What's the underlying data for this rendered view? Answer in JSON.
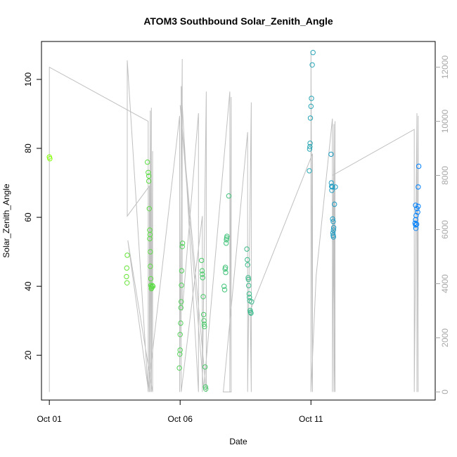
{
  "chart_data": {
    "type": "scatter",
    "title": "ATOM3 Southbound Solar_Zenith_Angle",
    "xlabel": "Date",
    "ylabel": "Solar_Zenith_Angle",
    "x_ticks": [
      "Oct 01",
      "Oct 06",
      "Oct 11"
    ],
    "y_ticks": [
      20,
      40,
      60,
      80,
      100
    ],
    "y2_ticks": [
      0,
      2000,
      4000,
      6000,
      8000,
      10000,
      12000
    ],
    "xlim_days": [
      -0.3,
      14.75
    ],
    "ylim": [
      7,
      111
    ],
    "y2lim": [
      -300,
      12950
    ],
    "grid": false,
    "points": [
      {
        "day": 0.0,
        "value": 77.5
      },
      {
        "day": 0.02,
        "value": 77.0
      },
      {
        "day": 2.98,
        "value": 49.0
      },
      {
        "day": 2.96,
        "value": 45.3
      },
      {
        "day": 2.95,
        "value": 42.8
      },
      {
        "day": 2.97,
        "value": 41.0
      },
      {
        "day": 3.75,
        "value": 76.0
      },
      {
        "day": 3.78,
        "value": 73.0
      },
      {
        "day": 3.8,
        "value": 72.0
      },
      {
        "day": 3.8,
        "value": 70.5
      },
      {
        "day": 3.82,
        "value": 62.5
      },
      {
        "day": 3.84,
        "value": 56.3
      },
      {
        "day": 3.85,
        "value": 55.0
      },
      {
        "day": 3.84,
        "value": 53.8
      },
      {
        "day": 3.86,
        "value": 50.0
      },
      {
        "day": 3.86,
        "value": 45.8
      },
      {
        "day": 3.88,
        "value": 42.2
      },
      {
        "day": 3.88,
        "value": 40.3
      },
      {
        "day": 3.9,
        "value": 39.9
      },
      {
        "day": 3.92,
        "value": 39.6
      },
      {
        "day": 3.94,
        "value": 40.2
      },
      {
        "day": 3.9,
        "value": 39.3
      },
      {
        "day": 3.96,
        "value": 40.0
      },
      {
        "day": 4.97,
        "value": 16.3
      },
      {
        "day": 4.99,
        "value": 20.3
      },
      {
        "day": 5.0,
        "value": 21.5
      },
      {
        "day": 5.0,
        "value": 26.0
      },
      {
        "day": 5.02,
        "value": 29.3
      },
      {
        "day": 5.03,
        "value": 33.8
      },
      {
        "day": 5.04,
        "value": 35.5
      },
      {
        "day": 5.05,
        "value": 40.3
      },
      {
        "day": 5.06,
        "value": 44.5
      },
      {
        "day": 5.08,
        "value": 51.5
      },
      {
        "day": 5.09,
        "value": 52.5
      },
      {
        "day": 5.82,
        "value": 47.5
      },
      {
        "day": 5.84,
        "value": 44.5
      },
      {
        "day": 5.85,
        "value": 43.5
      },
      {
        "day": 5.86,
        "value": 42.5
      },
      {
        "day": 5.88,
        "value": 37.0
      },
      {
        "day": 5.9,
        "value": 31.8
      },
      {
        "day": 5.91,
        "value": 30.0
      },
      {
        "day": 5.92,
        "value": 29.0
      },
      {
        "day": 5.93,
        "value": 28.3
      },
      {
        "day": 5.95,
        "value": 16.6
      },
      {
        "day": 5.97,
        "value": 10.8
      },
      {
        "day": 5.98,
        "value": 10.2
      },
      {
        "day": 6.68,
        "value": 40.0
      },
      {
        "day": 6.7,
        "value": 39.0
      },
      {
        "day": 6.72,
        "value": 45.0
      },
      {
        "day": 6.73,
        "value": 45.5
      },
      {
        "day": 6.74,
        "value": 44.0
      },
      {
        "day": 6.76,
        "value": 52.5
      },
      {
        "day": 6.77,
        "value": 53.5
      },
      {
        "day": 6.78,
        "value": 54.0
      },
      {
        "day": 6.79,
        "value": 54.5
      },
      {
        "day": 6.86,
        "value": 66.2
      },
      {
        "day": 7.55,
        "value": 50.8
      },
      {
        "day": 7.57,
        "value": 47.7
      },
      {
        "day": 7.58,
        "value": 46.2
      },
      {
        "day": 7.6,
        "value": 42.5
      },
      {
        "day": 7.61,
        "value": 42.0
      },
      {
        "day": 7.62,
        "value": 40.2
      },
      {
        "day": 7.64,
        "value": 37.8
      },
      {
        "day": 7.65,
        "value": 36.8
      },
      {
        "day": 7.66,
        "value": 35.8
      },
      {
        "day": 7.68,
        "value": 33.0
      },
      {
        "day": 7.69,
        "value": 32.5
      },
      {
        "day": 7.71,
        "value": 32.2
      },
      {
        "day": 7.73,
        "value": 35.5
      },
      {
        "day": 9.94,
        "value": 73.5
      },
      {
        "day": 9.95,
        "value": 79.8
      },
      {
        "day": 9.96,
        "value": 80.5
      },
      {
        "day": 9.97,
        "value": 81.5
      },
      {
        "day": 9.98,
        "value": 88.8
      },
      {
        "day": 10.0,
        "value": 92.2
      },
      {
        "day": 10.02,
        "value": 94.5
      },
      {
        "day": 10.05,
        "value": 104.2
      },
      {
        "day": 10.08,
        "value": 107.8
      },
      {
        "day": 10.77,
        "value": 78.3
      },
      {
        "day": 10.78,
        "value": 70.0
      },
      {
        "day": 10.79,
        "value": 69.0
      },
      {
        "day": 10.8,
        "value": 67.8
      },
      {
        "day": 10.82,
        "value": 68.8
      },
      {
        "day": 10.83,
        "value": 59.5
      },
      {
        "day": 10.85,
        "value": 58.8
      },
      {
        "day": 10.87,
        "value": 57.0
      },
      {
        "day": 10.86,
        "value": 56.3
      },
      {
        "day": 10.84,
        "value": 55.5
      },
      {
        "day": 10.85,
        "value": 54.8
      },
      {
        "day": 10.86,
        "value": 54.3
      },
      {
        "day": 10.9,
        "value": 63.8
      },
      {
        "day": 10.93,
        "value": 68.8
      },
      {
        "day": 14.0,
        "value": 63.5
      },
      {
        "day": 14.05,
        "value": 62.5
      },
      {
        "day": 14.02,
        "value": 60.5
      },
      {
        "day": 14.0,
        "value": 59.3
      },
      {
        "day": 13.98,
        "value": 58.3
      },
      {
        "day": 14.0,
        "value": 57.8
      },
      {
        "day": 14.04,
        "value": 58.0
      },
      {
        "day": 14.01,
        "value": 56.8
      },
      {
        "day": 14.08,
        "value": 61.5
      },
      {
        "day": 14.1,
        "value": 63.2
      },
      {
        "day": 14.1,
        "value": 68.8
      },
      {
        "day": 14.12,
        "value": 74.8
      }
    ],
    "track_series": [
      [
        0.0,
        0
      ],
      [
        0.0,
        12000
      ],
      [
        3.78,
        10000
      ],
      [
        3.78,
        0
      ],
      [
        2.98,
        12250
      ],
      [
        2.98,
        6500
      ],
      [
        3.82,
        7600
      ],
      [
        3.82,
        0
      ],
      [
        3.86,
        10400
      ],
      [
        3.86,
        0
      ],
      [
        3.9,
        10500
      ],
      [
        3.9,
        0
      ],
      [
        3.95,
        8900
      ],
      [
        3.95,
        0
      ],
      [
        3.0,
        5600
      ],
      [
        3.78,
        100
      ],
      [
        4.98,
        10200
      ],
      [
        4.98,
        0
      ],
      [
        5.08,
        12300
      ],
      [
        5.08,
        3000
      ],
      [
        5.7,
        10300
      ],
      [
        5.7,
        0
      ],
      [
        5.04,
        11300
      ],
      [
        5.04,
        0
      ],
      [
        5.85,
        6500
      ],
      [
        5.85,
        0
      ],
      [
        6.0,
        11100
      ],
      [
        6.0,
        0
      ],
      [
        5.0,
        10600
      ],
      [
        5.9,
        100
      ],
      [
        6.9,
        11100
      ],
      [
        6.9,
        0
      ],
      [
        6.95,
        10900
      ],
      [
        6.95,
        0
      ],
      [
        6.65,
        0
      ],
      [
        7.58,
        9600
      ],
      [
        7.58,
        0
      ],
      [
        7.72,
        10700
      ],
      [
        7.72,
        0
      ],
      [
        7.68,
        3000
      ],
      [
        10.06,
        8800
      ],
      [
        10.06,
        0
      ],
      [
        10.0,
        12600
      ],
      [
        10.0,
        0
      ],
      [
        10.2,
        4300
      ],
      [
        10.82,
        10100
      ],
      [
        10.82,
        0
      ],
      [
        10.88,
        9900
      ],
      [
        10.88,
        0
      ],
      [
        10.92,
        10000
      ],
      [
        10.92,
        0
      ],
      [
        10.82,
        8000
      ],
      [
        13.95,
        9700
      ],
      [
        13.95,
        0
      ],
      [
        14.05,
        10300
      ],
      [
        14.05,
        0
      ],
      [
        14.1,
        10200
      ],
      [
        14.1,
        0
      ]
    ],
    "color_by_time": {
      "start": "#80ff00",
      "end": "#0080ff"
    },
    "track_color": "#c0c0c0"
  }
}
